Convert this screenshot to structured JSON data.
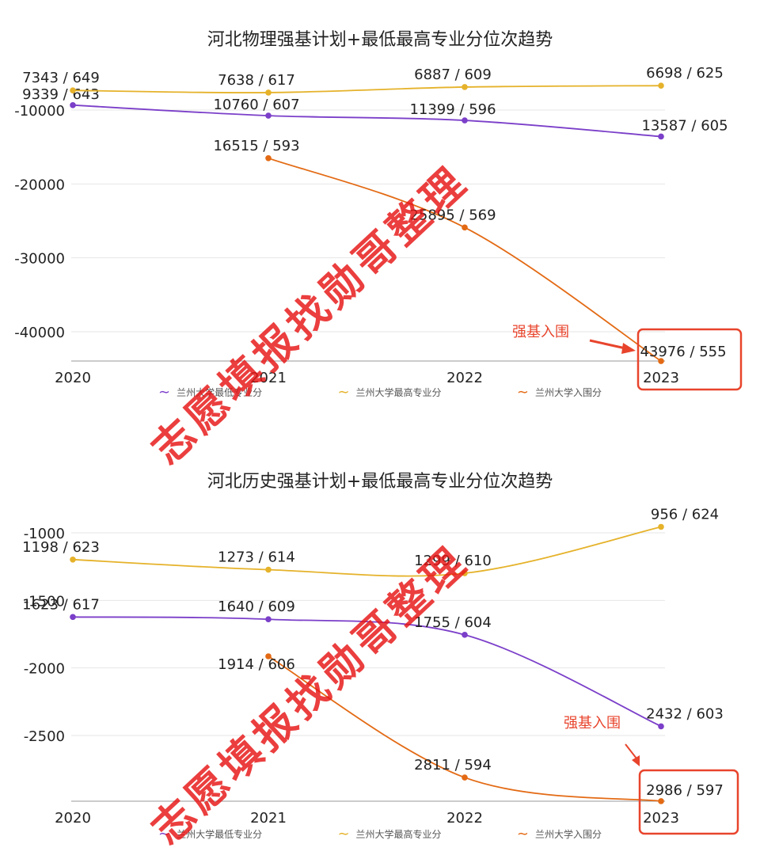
{
  "watermark_text": "志愿填报找勋哥整理",
  "callout_label": "强基入围",
  "colors": {
    "min_series": "#7b3fc9",
    "max_series": "#e5b22a",
    "admit_series": "#e36a14",
    "callout": "#e8442c",
    "grid": "#e6e6e6"
  },
  "chart_data": [
    {
      "type": "line",
      "title": "河北物理强基计划+最低最高专业分位次趋势",
      "categories": [
        "2020",
        "2021",
        "2022",
        "2023"
      ],
      "ylim": [
        -44000,
        -9000
      ],
      "yticks": [
        -10000,
        -20000,
        -30000,
        -40000
      ],
      "ytick_labels": [
        "-10000",
        "-20000",
        "-30000",
        "-40000"
      ],
      "grid": true,
      "legend_position": "bottom",
      "series": [
        {
          "name": "兰州大学最低专业分",
          "color": "#7b3fc9",
          "values": [
            -9339,
            -10760,
            -11399,
            -13587
          ],
          "labels": [
            "9339 / 643",
            "10760 / 607",
            "11399 / 596",
            "13587 / 605"
          ]
        },
        {
          "name": "兰州大学最高专业分",
          "color": "#e5b22a",
          "values": [
            -7343,
            -7638,
            -6887,
            -6698
          ],
          "labels": [
            "7343 / 649",
            "7638 / 617",
            "6887 / 609",
            "6698 / 625"
          ]
        },
        {
          "name": "兰州大学入围分",
          "color": "#e36a14",
          "values": [
            null,
            -16515,
            -25895,
            -43976
          ],
          "labels": [
            null,
            "16515 / 593",
            "25895 / 569",
            "43976 / 555"
          ]
        }
      ]
    },
    {
      "type": "line",
      "title": "河北历史强基计划+最低最高专业分位次趋势",
      "categories": [
        "2020",
        "2021",
        "2022",
        "2023"
      ],
      "ylim": [
        -3000,
        -900
      ],
      "yticks": [
        -1000,
        -1500,
        -2000,
        -2500
      ],
      "ytick_labels": [
        "-1000",
        "-1500",
        "-2000",
        "-2500"
      ],
      "grid": true,
      "legend_position": "bottom",
      "series": [
        {
          "name": "兰州大学最低专业分",
          "color": "#7b3fc9",
          "values": [
            -1623,
            -1640,
            -1755,
            -2432
          ],
          "labels": [
            "1623 / 617",
            "1640 / 609",
            "1755 / 604",
            "2432 / 603"
          ]
        },
        {
          "name": "兰州大学最高专业分",
          "color": "#e5b22a",
          "values": [
            -1198,
            -1273,
            -1299,
            -956
          ],
          "labels": [
            "1198 / 623",
            "1273 / 614",
            "1299 / 610",
            "956 / 624"
          ]
        },
        {
          "name": "兰州大学入围分",
          "color": "#e36a14",
          "values": [
            null,
            -1914,
            -2811,
            -2986
          ],
          "labels": [
            null,
            "1914 / 606",
            "2811 / 594",
            "2986 / 597"
          ]
        }
      ]
    }
  ]
}
